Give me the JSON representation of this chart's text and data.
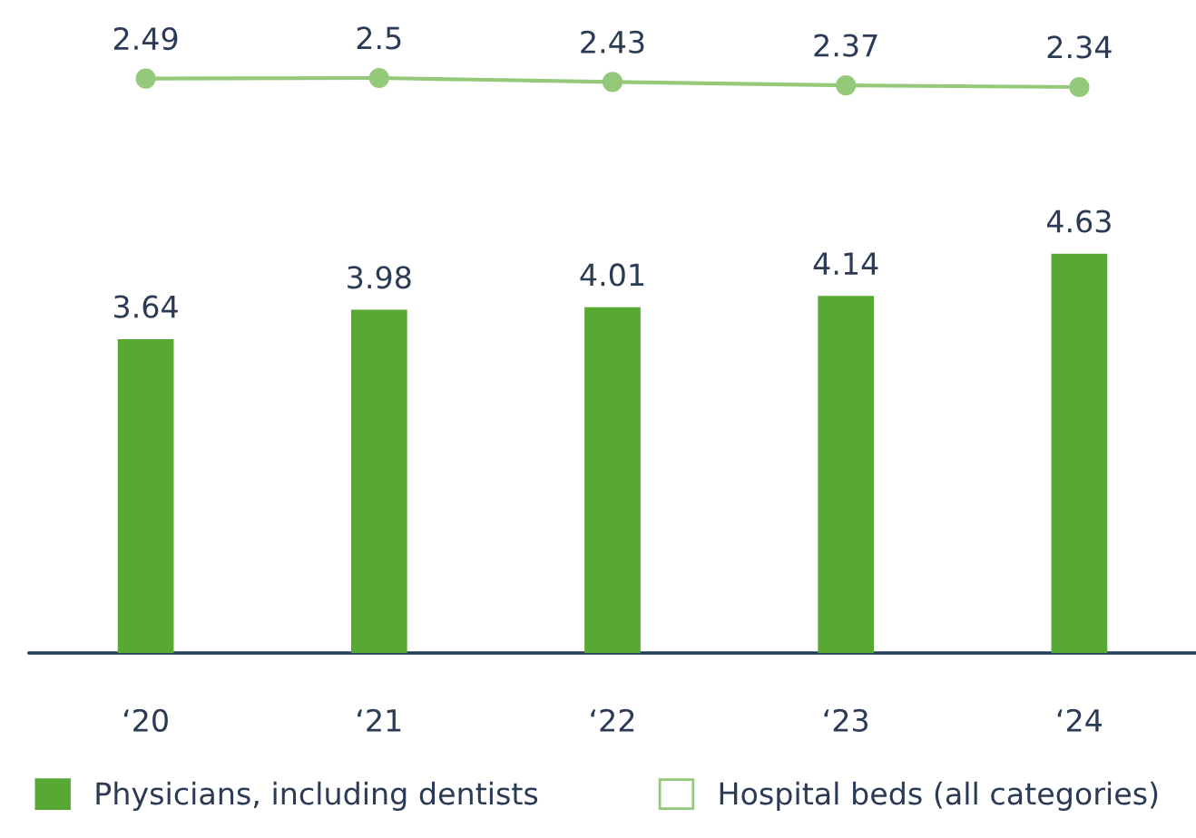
{
  "chart_data": [
    {
      "type": "line",
      "categories": [
        null,
        null,
        null,
        null,
        null
      ],
      "tick_labels": false,
      "marker": "circle",
      "data_labels": true,
      "series": [
        {
          "name": "Hospital beds (all categories)",
          "color": "#95c97a",
          "values": [
            2.49,
            2.5,
            2.43,
            2.37,
            2.34
          ]
        }
      ]
    },
    {
      "type": "bar",
      "categories": [
        "‘20",
        "‘21",
        "‘22",
        "‘23",
        "‘24"
      ],
      "tick_labels": "x",
      "data_labels": true,
      "legend": "bottom",
      "series": [
        {
          "name": "Physicians, including dentists",
          "color": "#58a834",
          "values": [
            3.64,
            3.98,
            4.01,
            4.14,
            4.63
          ]
        }
      ]
    }
  ]
}
